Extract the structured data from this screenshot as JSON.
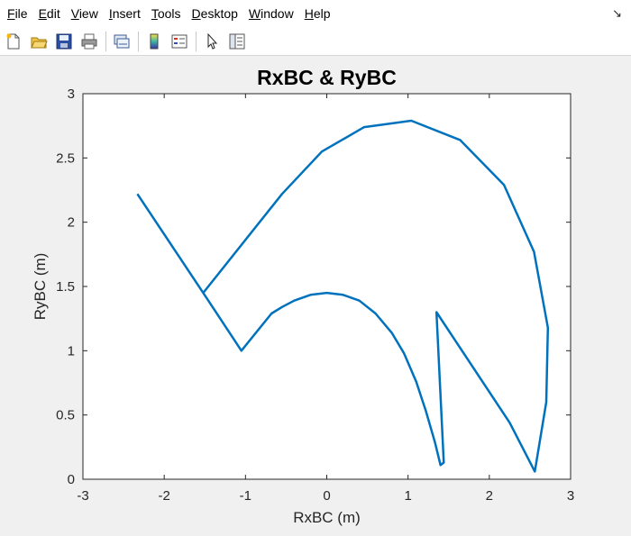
{
  "window": {
    "menu": [
      {
        "key": "F",
        "rest": "ile"
      },
      {
        "key": "E",
        "rest": "dit"
      },
      {
        "key": "V",
        "rest": "iew"
      },
      {
        "key": "I",
        "rest": "nsert"
      },
      {
        "key": "T",
        "rest": "ools"
      },
      {
        "key": "D",
        "rest": "esktop"
      },
      {
        "key": "W",
        "rest": "indow"
      },
      {
        "key": "H",
        "rest": "elp"
      }
    ],
    "menu_arrow": "↘",
    "toolbar_icons": [
      "new-figure-icon",
      "open-file-icon",
      "save-icon",
      "print-icon",
      "link-plot-icon",
      "insert-colorbar-icon",
      "insert-legend-icon",
      "edit-plot-icon",
      "property-inspector-icon"
    ]
  },
  "colors": {
    "series": "#0072bd",
    "axes_bg": "#ffffff",
    "figure_bg": "#f0f0f0"
  },
  "chart_data": {
    "type": "line",
    "title": "RxBC & RyBC",
    "xlabel": "RxBC (m)",
    "ylabel": "RyBC (m)",
    "xlim": [
      -3,
      3
    ],
    "ylim": [
      0,
      3
    ],
    "xticks": [
      "-3",
      "-2",
      "-1",
      "0",
      "1",
      "2",
      "3"
    ],
    "yticks": [
      "0",
      "0.5",
      "1",
      "1.5",
      "2",
      "2.5",
      "3"
    ],
    "grid": false,
    "series": [
      {
        "x": [
          -2.33,
          -1.52,
          -1.05,
          -0.68,
          -0.55,
          -0.4,
          -0.2,
          0.0,
          0.2,
          0.4,
          0.6,
          0.8,
          0.95,
          1.1,
          1.22,
          1.33,
          1.4,
          1.44,
          1.35,
          2.25,
          2.56,
          2.7,
          2.72,
          2.55,
          2.18,
          1.64,
          1.04,
          0.46,
          -0.06,
          -0.55,
          -1.52
        ],
        "y": [
          2.22,
          1.45,
          1.0,
          1.29,
          1.34,
          1.39,
          1.435,
          1.45,
          1.435,
          1.39,
          1.29,
          1.14,
          0.98,
          0.76,
          0.53,
          0.29,
          0.11,
          0.13,
          1.3,
          0.44,
          0.06,
          0.6,
          1.18,
          1.77,
          2.29,
          2.64,
          2.79,
          2.74,
          2.55,
          2.22,
          1.45
        ]
      }
    ]
  }
}
